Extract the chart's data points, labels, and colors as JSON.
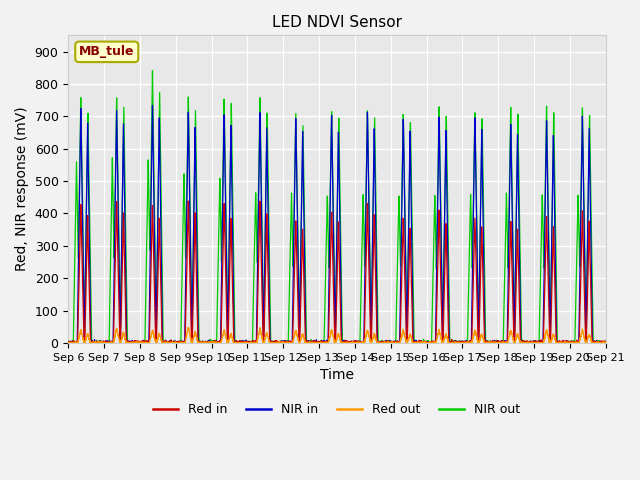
{
  "title": "LED NDVI Sensor",
  "xlabel": "Time",
  "ylabel": "Red, NIR response (mV)",
  "ylim": [
    0,
    950
  ],
  "yticks": [
    0,
    100,
    200,
    300,
    400,
    500,
    600,
    700,
    800,
    900
  ],
  "x_labels": [
    "Sep 6",
    "Sep 7",
    "Sep 8",
    "Sep 9",
    "Sep 10",
    "Sep 11",
    "Sep 12",
    "Sep 13",
    "Sep 14",
    "Sep 15",
    "Sep 16",
    "Sep 17",
    "Sep 18",
    "Sep 19",
    "Sep 20",
    "Sep 21"
  ],
  "annotation_text": "MB_tule",
  "annotation_bbox_facecolor": "#ffffcc",
  "annotation_bbox_edgecolor": "#aaaa00",
  "annotation_text_color": "#880000",
  "colors": {
    "red_in": "#cc0000",
    "nir_in": "#0000cc",
    "red_out": "#ff9900",
    "nir_out": "#00cc00"
  },
  "fig_facecolor": "#f2f2f2",
  "plot_facecolor": "#e8e8e8",
  "n_days": 15,
  "red_in_peaks": [
    430,
    440,
    430,
    440,
    430,
    440,
    380,
    410,
    435,
    390,
    410,
    390,
    380,
    395,
    410
  ],
  "nir_in_peaks": [
    730,
    720,
    740,
    720,
    710,
    715,
    700,
    710,
    720,
    700,
    700,
    700,
    680,
    690,
    700
  ],
  "red_out_peaks": [
    40,
    45,
    40,
    50,
    40,
    45,
    40,
    40,
    40,
    40,
    40,
    40,
    40,
    40,
    40
  ],
  "nir_out_peaks": [
    760,
    760,
    840,
    760,
    760,
    760,
    715,
    720,
    720,
    715,
    735,
    720,
    730,
    730,
    730
  ],
  "nir_out_first_shoulder": [
    560,
    570,
    570,
    530,
    510,
    470,
    460,
    460,
    460,
    460,
    460,
    460,
    460,
    460,
    460
  ]
}
